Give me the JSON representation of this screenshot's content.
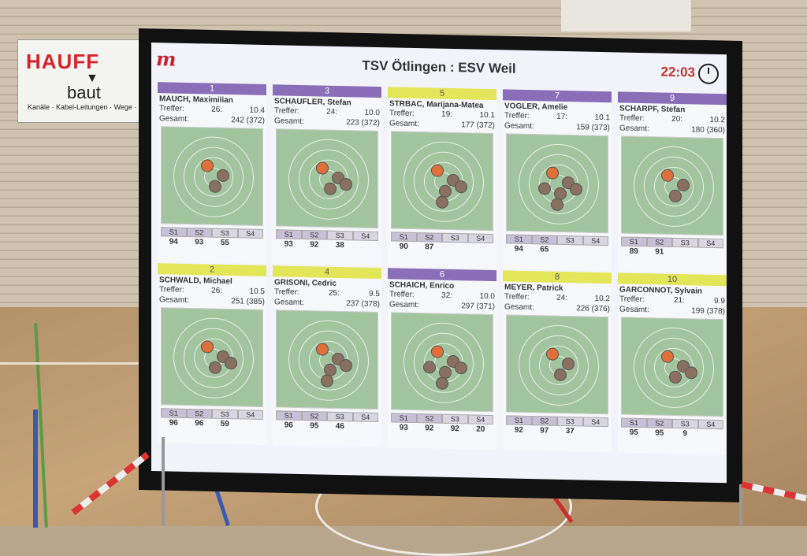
{
  "banner": {
    "brand": "HAUFF",
    "sub": "baut",
    "line": "Kanäle · Kabel-Leitungen · Wege · V"
  },
  "header": {
    "title": "TSV Ötlingen : ESV Weil",
    "clock": "22:03"
  },
  "series_labels": [
    "S1",
    "S2",
    "S3",
    "S4"
  ],
  "labels": {
    "treffer": "Treffer:",
    "gesamt": "Gesamt:"
  },
  "lanes": [
    {
      "num": "1",
      "color": "purple",
      "name": "MAUCH, Maximilian",
      "treffer": "26:",
      "last": "10.4",
      "gesamt": "242 (372)",
      "vals": [
        "94",
        "93",
        "55",
        ""
      ]
    },
    {
      "num": "3",
      "color": "purple",
      "name": "SCHAUFLER, Stefan",
      "treffer": "24:",
      "last": "10.0",
      "gesamt": "223 (372)",
      "vals": [
        "93",
        "92",
        "38",
        ""
      ]
    },
    {
      "num": "5",
      "color": "yellow",
      "name": "STRBAC, Marijana-Matea",
      "treffer": "19:",
      "last": "10.1",
      "gesamt": "177 (372)",
      "vals": [
        "90",
        "87",
        "",
        ""
      ]
    },
    {
      "num": "7",
      "color": "purple",
      "name": "VOGLER, Amelie",
      "treffer": "17:",
      "last": "10.1",
      "gesamt": "159 (373)",
      "vals": [
        "94",
        "65",
        "",
        ""
      ]
    },
    {
      "num": "9",
      "color": "purple",
      "name": "SCHARPF, Stefan",
      "treffer": "20:",
      "last": "10.2",
      "gesamt": "180 (360)",
      "vals": [
        "89",
        "91",
        "",
        ""
      ]
    },
    {
      "num": "2",
      "color": "yellow",
      "name": "SCHWALD, Michael",
      "treffer": "26:",
      "last": "10.5",
      "gesamt": "251 (385)",
      "vals": [
        "96",
        "96",
        "59",
        ""
      ]
    },
    {
      "num": "4",
      "color": "yellow",
      "name": "GRISONI, Cedric",
      "treffer": "25:",
      "last": "9.5",
      "gesamt": "237 (378)",
      "vals": [
        "96",
        "95",
        "46",
        ""
      ]
    },
    {
      "num": "6",
      "color": "purple",
      "name": "SCHAICH, Enrico",
      "treffer": "32:",
      "last": "10.0",
      "gesamt": "297 (371)",
      "vals": [
        "93",
        "92",
        "92",
        "20"
      ]
    },
    {
      "num": "8",
      "color": "yellow",
      "name": "MEYER, Patrick",
      "treffer": "24:",
      "last": "10.2",
      "gesamt": "226 (376)",
      "vals": [
        "92",
        "97",
        "37",
        ""
      ]
    },
    {
      "num": "10",
      "color": "yellow",
      "name": "GARCONNOT, Sylvain",
      "treffer": "21:",
      "last": "9.9",
      "gesamt": "199 (378)",
      "vals": [
        "95",
        "95",
        "9",
        ""
      ]
    }
  ]
}
